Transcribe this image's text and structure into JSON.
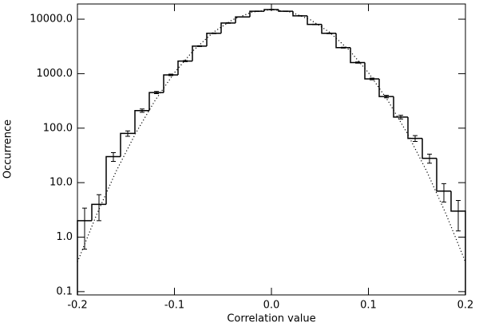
{
  "chart_data": {
    "type": "histogram",
    "x_label": "Correlation value",
    "y_label": "Occurrence",
    "color": "#000000",
    "log_y": true,
    "bins": [
      -0.2,
      -0.18519,
      -0.17037,
      -0.15556,
      -0.14074,
      -0.12593,
      -0.11111,
      -0.0963,
      -0.08148,
      -0.06667,
      -0.05185,
      -0.03704,
      -0.02222,
      -0.00741,
      0.00741,
      0.02222,
      0.03704,
      0.05185,
      0.06667,
      0.08148,
      0.0963,
      0.11111,
      0.12593,
      0.14074,
      0.15556,
      0.17037,
      0.18519,
      0.2
    ],
    "values": [
      2,
      4,
      30,
      80,
      210,
      450,
      950,
      1700,
      3200,
      5500,
      8500,
      11000,
      14000,
      15000,
      14000,
      11500,
      8000,
      5500,
      3000,
      1600,
      800,
      380,
      160,
      65,
      28,
      7,
      3
    ],
    "errors": [
      1.4,
      2,
      5.5,
      9,
      14.5,
      21,
      31,
      41,
      57,
      74,
      92,
      105,
      118,
      122,
      118,
      107,
      89,
      74,
      55,
      40,
      28,
      19.5,
      12.6,
      8,
      5.3,
      2.6,
      1.7
    ],
    "fit": {
      "style": "dotted",
      "x": [
        -0.2,
        -0.18,
        -0.16,
        -0.14,
        -0.12,
        -0.1,
        -0.08,
        -0.06,
        -0.04,
        -0.02,
        0,
        0.02,
        0.04,
        0.06,
        0.08,
        0.1,
        0.12,
        0.14,
        0.16,
        0.18,
        0.2
      ],
      "y": [
        0.35,
        2.65,
        16.3,
        80.5,
        322,
        1042,
        2721,
        5743,
        9790,
        13482,
        15000,
        13482,
        9790,
        5743,
        2721,
        1042,
        322,
        80.5,
        16.3,
        2.65,
        0.35
      ]
    },
    "xlim": [
      -0.2,
      0.2
    ],
    "ylim": [
      0.087,
      19000
    ],
    "xticks": [
      -0.2,
      -0.1,
      {
        "value": 0,
        "label": "0.0"
      },
      0.1,
      0.2
    ],
    "yticks": [
      0.1,
      {
        "value": 1,
        "label": "1.0"
      },
      {
        "value": 10,
        "label": "10.0"
      },
      {
        "value": 100,
        "label": "100.0"
      },
      {
        "value": 1000,
        "label": "1000.0"
      },
      {
        "value": 10000,
        "label": "10000.0"
      }
    ]
  }
}
